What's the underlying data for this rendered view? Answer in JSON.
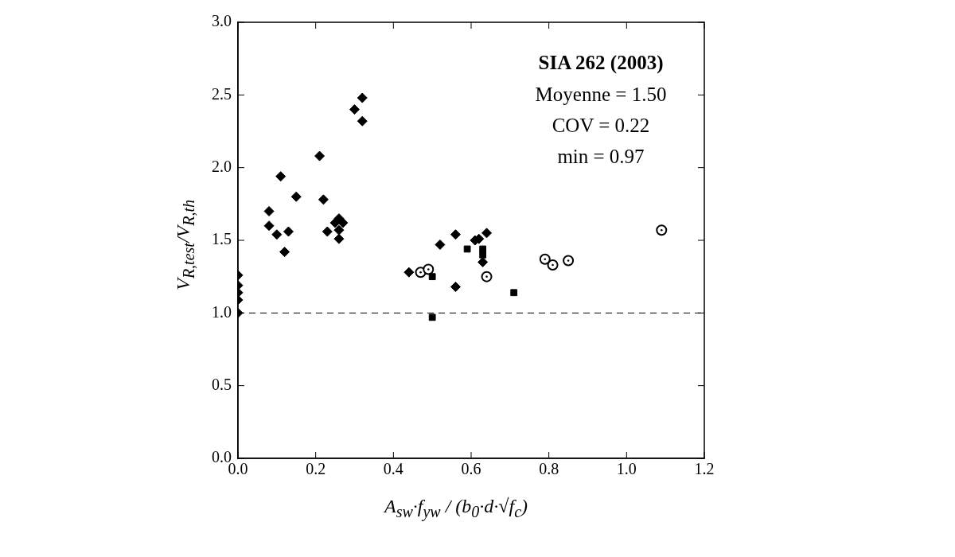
{
  "chart_data": {
    "type": "scatter",
    "xlabel": "A$_{sw}$·f$_{yw}$ / (b$_{0}$·d·√f$_{c}$)",
    "ylabel": "V$_{R,test}$/V$_{R,th}$",
    "xlim": [
      0,
      1.2
    ],
    "xticks": [
      {
        "value": 0,
        "label": "0.0"
      },
      {
        "value": 0.2,
        "label": "0.2"
      },
      {
        "value": 0.4,
        "label": "0.4"
      },
      {
        "value": 0.6,
        "label": "0.6"
      },
      {
        "value": 0.8,
        "label": "0.8"
      },
      {
        "value": 1,
        "label": "1.0"
      },
      {
        "value": 1.2,
        "label": "1.2"
      }
    ],
    "ylim": [
      0,
      3
    ],
    "yticks": [
      {
        "value": 0,
        "label": "0.0"
      },
      {
        "value": 0.5,
        "label": "0.5"
      },
      {
        "value": 1,
        "label": "1.0"
      },
      {
        "value": 1.5,
        "label": "1.5"
      },
      {
        "value": 2,
        "label": "2.0"
      },
      {
        "value": 2.5,
        "label": "2.5"
      },
      {
        "value": 3,
        "label": "3.0"
      }
    ],
    "grid": false,
    "legend": false,
    "ref_lines": [
      {
        "axis": "y",
        "value": 1,
        "line_style": "dashed",
        "color": "#000000"
      }
    ],
    "annotations": [
      "SIA 262 (2003)",
      "Moyenne = 1.50",
      "COV = 0.22",
      "min = 0.97"
    ],
    "series": [
      {
        "marker": "diamond",
        "color": "#000000",
        "x": [
          0,
          0,
          0,
          0,
          0,
          0.08,
          0.08,
          0.1,
          0.11,
          0.12,
          0.13,
          0.15,
          0.21,
          0.22,
          0.23,
          0.25,
          0.26,
          0.27,
          0.26,
          0.26,
          0.3,
          0.32,
          0.32,
          0.44,
          0.52,
          0.56,
          0.56,
          0.61,
          0.62,
          0.63,
          0.64
        ],
        "values": [
          1.26,
          1.19,
          1.14,
          1.09,
          1.0,
          1.7,
          1.6,
          1.54,
          1.94,
          1.42,
          1.56,
          1.8,
          2.08,
          1.78,
          1.56,
          1.62,
          1.65,
          1.62,
          1.57,
          1.51,
          2.4,
          2.48,
          2.32,
          1.28,
          1.47,
          1.54,
          1.18,
          1.5,
          1.51,
          1.35,
          1.55
        ]
      },
      {
        "marker": "square",
        "color": "#000000",
        "x": [
          0.5,
          0.5,
          0.59,
          0.63,
          0.63,
          0.71
        ],
        "values": [
          1.25,
          0.97,
          1.44,
          1.44,
          1.4,
          1.14
        ]
      },
      {
        "marker": "circle",
        "color": "#000000",
        "x": [
          0.47,
          0.49,
          0.64,
          0.79,
          0.81,
          0.85,
          1.09
        ],
        "values": [
          1.28,
          1.3,
          1.25,
          1.37,
          1.33,
          1.36,
          1.57
        ]
      }
    ]
  }
}
